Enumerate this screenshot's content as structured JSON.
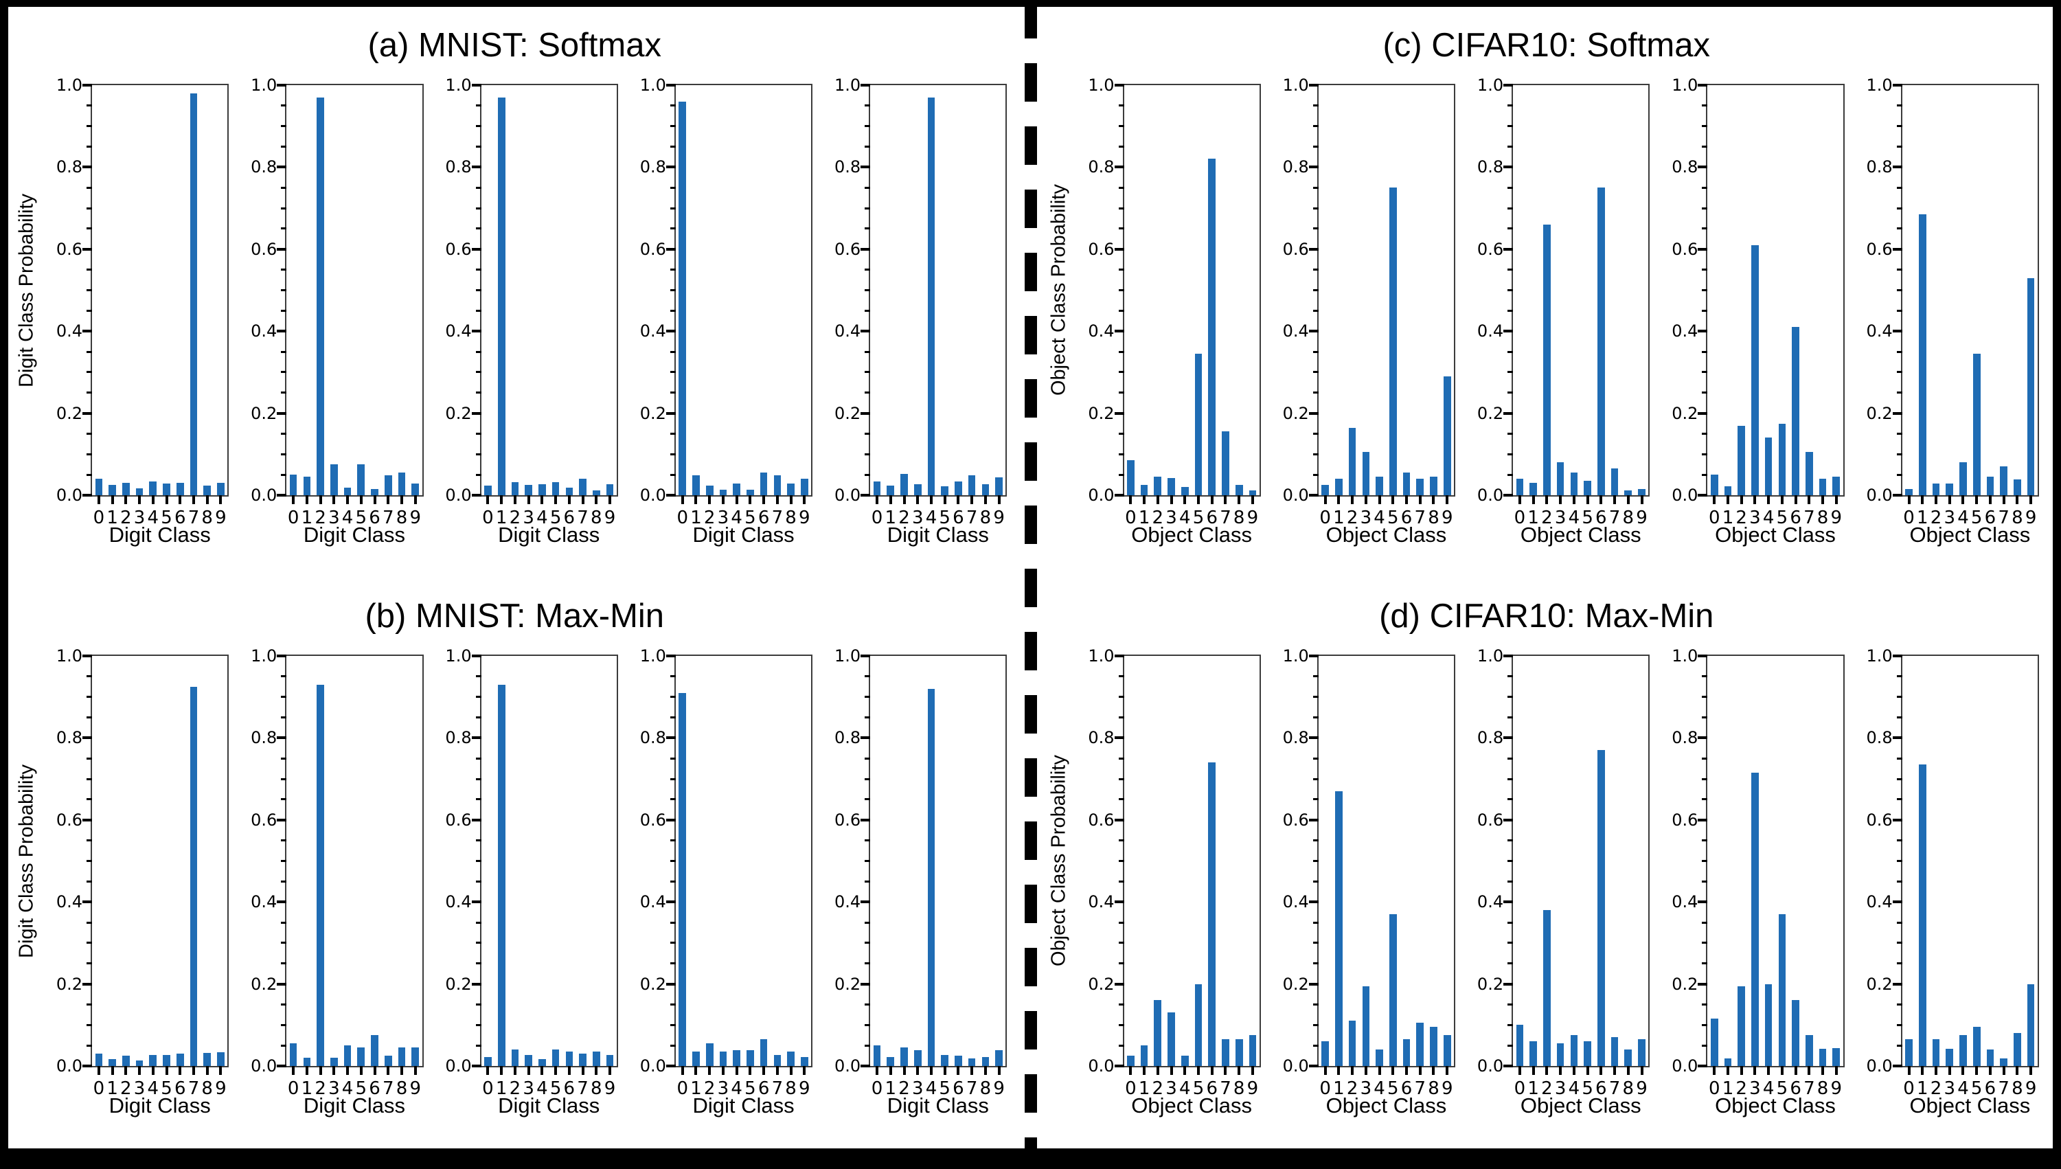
{
  "figure": {
    "bar_color": "#1f6cb4",
    "frame_color": "#000000",
    "background": "#ffffff",
    "separator": "vertical-dashed-black-line"
  },
  "axis": {
    "yticks": [
      "0.0",
      "0.2",
      "0.4",
      "0.6",
      "0.8",
      "1.0"
    ],
    "ylim": [
      0,
      1.0
    ],
    "minor_tick_step": 0.05,
    "categories": [
      "0",
      "1",
      "2",
      "3",
      "4",
      "5",
      "6",
      "7",
      "8",
      "9"
    ]
  },
  "chart_data": [
    {
      "type": "bar",
      "title": "(a) MNIST: Softmax",
      "ylabel": "Digit Class Probability",
      "xlabel": "Digit Class",
      "ylim": [
        0,
        1.0
      ],
      "grid": false,
      "categories": [
        "0",
        "1",
        "2",
        "3",
        "4",
        "5",
        "6",
        "7",
        "8",
        "9"
      ],
      "series": [
        {
          "values": [
            0.041,
            0.025,
            0.03,
            0.016,
            0.033,
            0.028,
            0.031,
            0.98,
            0.023,
            0.03
          ]
        },
        {
          "values": [
            0.05,
            0.046,
            0.97,
            0.075,
            0.018,
            0.075,
            0.015,
            0.049,
            0.056,
            0.028
          ]
        },
        {
          "values": [
            0.023,
            0.97,
            0.032,
            0.025,
            0.026,
            0.032,
            0.018,
            0.04,
            0.011,
            0.026
          ]
        },
        {
          "values": [
            0.96,
            0.049,
            0.024,
            0.013,
            0.028,
            0.014,
            0.056,
            0.048,
            0.028,
            0.04
          ]
        },
        {
          "values": [
            0.033,
            0.023,
            0.052,
            0.027,
            0.97,
            0.021,
            0.034,
            0.049,
            0.026,
            0.044
          ]
        }
      ]
    },
    {
      "type": "bar",
      "title": "(b) MNIST: Max-Min",
      "ylabel": "Digit Class Probability",
      "xlabel": "Digit Class",
      "ylim": [
        0,
        1.0
      ],
      "grid": false,
      "categories": [
        "0",
        "1",
        "2",
        "3",
        "4",
        "5",
        "6",
        "7",
        "8",
        "9"
      ],
      "series": [
        {
          "values": [
            0.031,
            0.016,
            0.025,
            0.013,
            0.027,
            0.027,
            0.03,
            0.925,
            0.032,
            0.033
          ]
        },
        {
          "values": [
            0.056,
            0.02,
            0.93,
            0.02,
            0.051,
            0.046,
            0.076,
            0.025,
            0.046,
            0.046
          ]
        },
        {
          "values": [
            0.021,
            0.93,
            0.041,
            0.026,
            0.016,
            0.041,
            0.036,
            0.031,
            0.036,
            0.026
          ]
        },
        {
          "values": [
            0.91,
            0.036,
            0.056,
            0.036,
            0.038,
            0.038,
            0.066,
            0.026,
            0.036,
            0.021
          ]
        },
        {
          "values": [
            0.051,
            0.021,
            0.046,
            0.038,
            0.92,
            0.027,
            0.025,
            0.018,
            0.022,
            0.038
          ]
        }
      ]
    },
    {
      "type": "bar",
      "title": "(c) CIFAR10: Softmax",
      "ylabel": "Object Class Probability",
      "xlabel": "Object Class",
      "ylim": [
        0,
        1.0
      ],
      "grid": false,
      "categories": [
        "0",
        "1",
        "2",
        "3",
        "4",
        "5",
        "6",
        "7",
        "8",
        "9"
      ],
      "series": [
        {
          "values": [
            0.085,
            0.025,
            0.045,
            0.042,
            0.02,
            0.345,
            0.82,
            0.155,
            0.025,
            0.012
          ]
        },
        {
          "values": [
            0.025,
            0.04,
            0.165,
            0.105,
            0.045,
            0.75,
            0.055,
            0.04,
            0.045,
            0.29
          ]
        },
        {
          "values": [
            0.04,
            0.03,
            0.66,
            0.08,
            0.055,
            0.035,
            0.75,
            0.065,
            0.012,
            0.015
          ]
        },
        {
          "values": [
            0.05,
            0.022,
            0.17,
            0.61,
            0.14,
            0.175,
            0.41,
            0.105,
            0.04,
            0.045
          ]
        },
        {
          "values": [
            0.015,
            0.685,
            0.028,
            0.028,
            0.08,
            0.345,
            0.045,
            0.07,
            0.038,
            0.53
          ]
        }
      ]
    },
    {
      "type": "bar",
      "title": "(d) CIFAR10: Max-Min",
      "ylabel": "Object Class Probability",
      "xlabel": "Object Class",
      "ylim": [
        0,
        1.0
      ],
      "grid": false,
      "categories": [
        "0",
        "1",
        "2",
        "3",
        "4",
        "5",
        "6",
        "7",
        "8",
        "9"
      ],
      "series": [
        {
          "values": [
            0.025,
            0.05,
            0.16,
            0.13,
            0.025,
            0.2,
            0.74,
            0.065,
            0.065,
            0.075
          ]
        },
        {
          "values": [
            0.06,
            0.67,
            0.11,
            0.195,
            0.04,
            0.37,
            0.065,
            0.105,
            0.095,
            0.075
          ]
        },
        {
          "values": [
            0.1,
            0.06,
            0.38,
            0.055,
            0.075,
            0.06,
            0.77,
            0.07,
            0.04,
            0.065
          ]
        },
        {
          "values": [
            0.115,
            0.018,
            0.195,
            0.715,
            0.2,
            0.37,
            0.16,
            0.075,
            0.042,
            0.043
          ]
        },
        {
          "values": [
            0.065,
            0.735,
            0.065,
            0.042,
            0.075,
            0.095,
            0.04,
            0.018,
            0.08,
            0.2
          ]
        }
      ]
    }
  ]
}
